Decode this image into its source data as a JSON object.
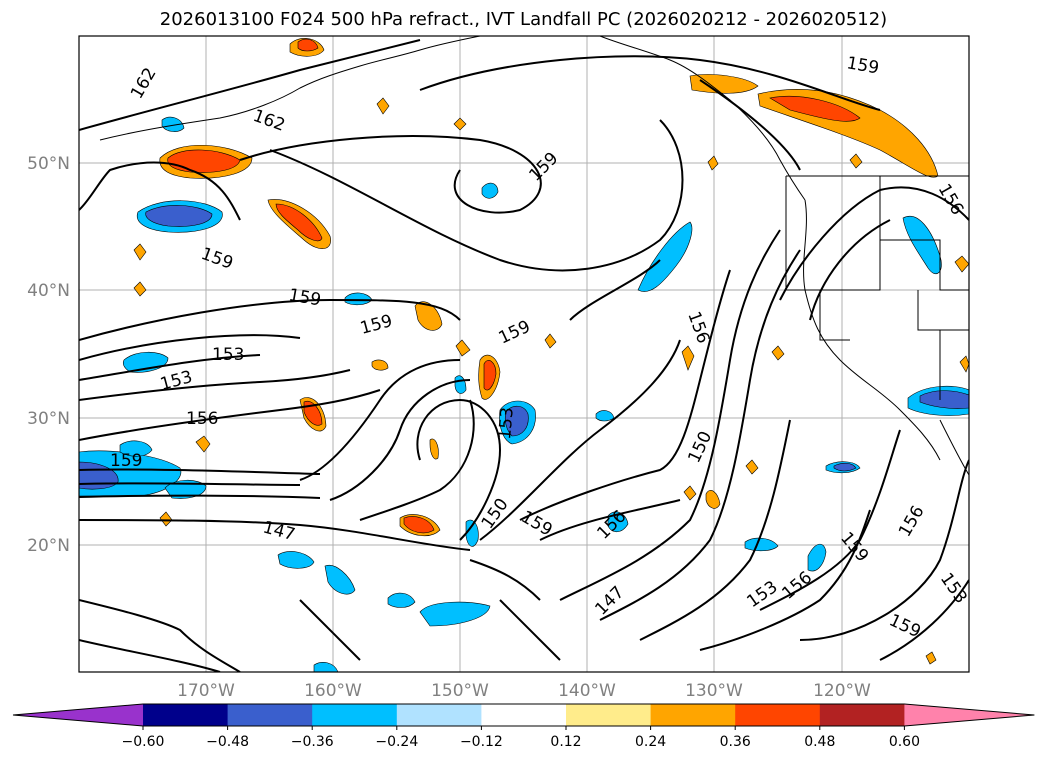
{
  "title": "2026013100 F024 500 hPa refract., IVT Landfall PC (2026020212 - 2026020512)",
  "map": {
    "lat_labels": [
      "50°N",
      "40°N",
      "30°N",
      "20°N"
    ],
    "lon_labels": [
      "170°W",
      "160°W",
      "150°W",
      "140°W",
      "130°W",
      "120°W"
    ],
    "gridlines": true,
    "contour_labels": [
      "162",
      "162",
      "159",
      "159",
      "159",
      "159",
      "159",
      "153",
      "153",
      "156",
      "159",
      "147",
      "150",
      "159",
      "156",
      "150",
      "147",
      "153",
      "156",
      "156",
      "159",
      "159",
      "156",
      "153",
      "159",
      "153",
      "156"
    ]
  },
  "colorbar": {
    "tick_labels": [
      "−0.60",
      "−0.48",
      "−0.36",
      "−0.24",
      "−0.12",
      "0.12",
      "0.24",
      "0.36",
      "0.48",
      "0.60"
    ],
    "colors": [
      "#9932cc",
      "#00008b",
      "#3a5fcd",
      "#00bfff",
      "#b0e2ff",
      "#ffffff",
      "#ffec8b",
      "#ffa500",
      "#ff4500",
      "#b22222",
      "#ff82ab"
    ]
  }
}
